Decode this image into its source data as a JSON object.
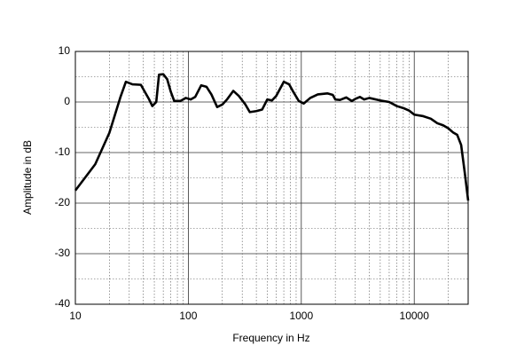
{
  "chart_data": {
    "type": "line",
    "x_label": "Frequency  in Hz",
    "y_label": "Amplitude in dB",
    "x_scale": "log",
    "xlim": [
      10,
      30000
    ],
    "xticks": [
      10,
      100,
      1000,
      10000
    ],
    "x_minor_ticks": [
      20,
      30,
      40,
      50,
      60,
      70,
      80,
      90,
      200,
      300,
      400,
      500,
      600,
      700,
      800,
      900,
      2000,
      3000,
      4000,
      5000,
      6000,
      7000,
      8000,
      9000,
      20000
    ],
    "ylim": [
      -40,
      10
    ],
    "yticks": [
      -40,
      -30,
      -20,
      -10,
      0,
      10
    ],
    "y_minor_ticks": [
      -35,
      -25,
      -15,
      -5,
      5
    ],
    "grid": true,
    "color": "#000000",
    "x": [
      10,
      15,
      20,
      25,
      28,
      32,
      38,
      45,
      48,
      52,
      55,
      60,
      65,
      70,
      75,
      85,
      95,
      105,
      115,
      130,
      145,
      160,
      180,
      200,
      220,
      250,
      280,
      320,
      350,
      400,
      450,
      500,
      550,
      600,
      700,
      780,
      850,
      950,
      1050,
      1200,
      1400,
      1700,
      1900,
      2000,
      2200,
      2500,
      2800,
      3000,
      3300,
      3600,
      4000,
      5000,
      6000,
      7000,
      8000,
      9000,
      10000,
      12000,
      14000,
      16000,
      18000,
      20000,
      22000,
      24000,
      26000,
      28000,
      30000
    ],
    "values": [
      -17.5,
      -12.3,
      -6.1,
      0.9,
      4.0,
      3.5,
      3.4,
      0.5,
      -0.8,
      0,
      5.4,
      5.5,
      4.5,
      2,
      0.2,
      0.2,
      0.8,
      0.5,
      1,
      3.3,
      3,
      1.5,
      -1,
      -0.5,
      0.5,
      2.2,
      1.2,
      -0.5,
      -2,
      -1.8,
      -1.5,
      0.5,
      0.3,
      1.2,
      4,
      3.5,
      2,
      0.2,
      -0.3,
      0.8,
      1.5,
      1.7,
      1.4,
      0.5,
      0.4,
      0.9,
      0.2,
      0.6,
      1,
      0.5,
      0.8,
      0.3,
      0,
      -0.8,
      -1.2,
      -1.7,
      -2.5,
      -2.8,
      -3.3,
      -4.2,
      -4.6,
      -5.2,
      -6,
      -6.5,
      -8.5,
      -14,
      -19.5
    ]
  }
}
